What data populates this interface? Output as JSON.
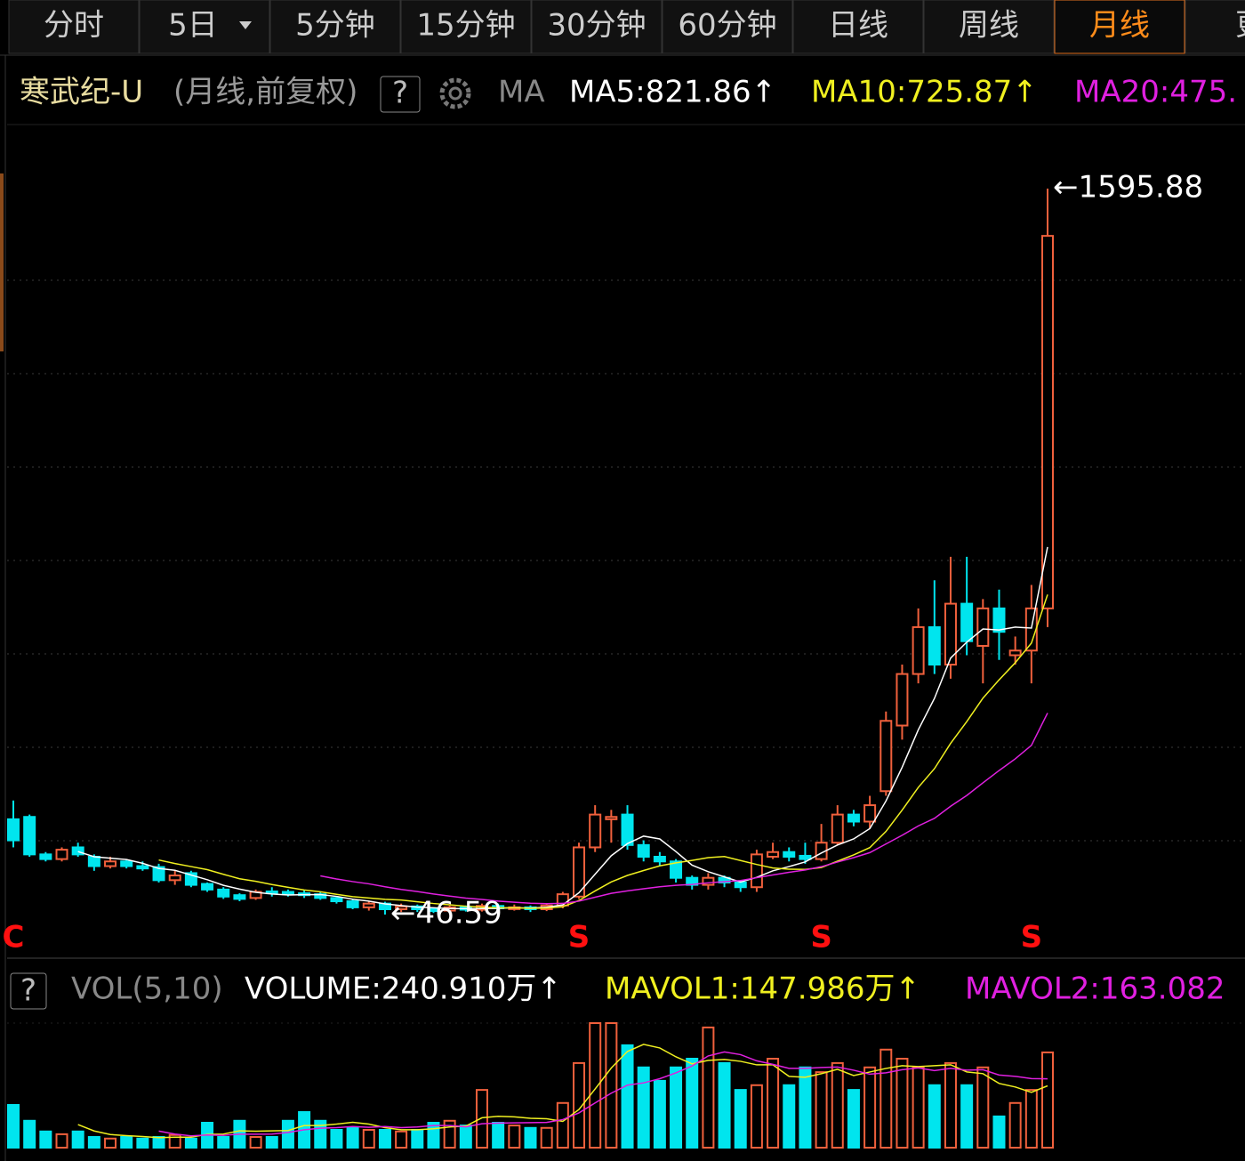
{
  "tabs": [
    "分时",
    "5日",
    "5分钟",
    "15分钟",
    "30分钟",
    "60分钟",
    "日线",
    "周线",
    "月线",
    "更"
  ],
  "selected_tab": "月线",
  "chart_data": [
    {
      "type": "candlestick",
      "title": "寒武纪-U",
      "subtitle": "(月线,前复权)",
      "help": "?",
      "indicator": "MA",
      "ma": [
        {
          "name": "MA5:821.86↑",
          "color": "#ffffff"
        },
        {
          "name": "MA10:725.87↑",
          "color": "#f0f020"
        },
        {
          "name": "MA20:475.",
          "color": "#e020e0"
        }
      ],
      "open": [
        250,
        255,
        175,
        165,
        190,
        170,
        150,
        160,
        150,
        148,
        120,
        135,
        112,
        100,
        88,
        82,
        96,
        95,
        92,
        90,
        82,
        75,
        62,
        70,
        58,
        64,
        58,
        55,
        62,
        57,
        65,
        60,
        62,
        58,
        66,
        85,
        190,
        250,
        260,
        195,
        170,
        160,
        125,
        110,
        125,
        115,
        105,
        170,
        180,
        172,
        165,
        200,
        260,
        245,
        310,
        450,
        560,
        660,
        580,
        710,
        620,
        700,
        600,
        610,
        700
      ],
      "high": [
        290,
        260,
        180,
        190,
        200,
        175,
        170,
        165,
        160,
        155,
        140,
        140,
        115,
        105,
        92,
        100,
        105,
        100,
        98,
        94,
        86,
        78,
        75,
        74,
        70,
        68,
        62,
        66,
        66,
        70,
        70,
        68,
        66,
        70,
        95,
        200,
        280,
        270,
        280,
        205,
        180,
        165,
        130,
        135,
        130,
        120,
        185,
        200,
        190,
        200,
        240,
        280,
        270,
        300,
        480,
        580,
        700,
        760,
        810,
        810,
        720,
        740,
        640,
        750,
        1595.88
      ],
      "low": [
        190,
        170,
        160,
        160,
        170,
        140,
        145,
        145,
        140,
        115,
        110,
        105,
        95,
        80,
        75,
        78,
        85,
        85,
        82,
        78,
        70,
        58,
        55,
        46.59,
        52,
        52,
        50,
        52,
        53,
        53,
        55,
        55,
        52,
        54,
        60,
        80,
        180,
        200,
        185,
        160,
        150,
        115,
        100,
        100,
        105,
        95,
        95,
        165,
        160,
        155,
        160,
        195,
        235,
        230,
        300,
        420,
        540,
        560,
        550,
        600,
        540,
        590,
        580,
        540,
        660
      ],
      "close": [
        205,
        175,
        165,
        185,
        175,
        150,
        160,
        150,
        145,
        120,
        130,
        110,
        100,
        85,
        80,
        95,
        92,
        90,
        88,
        82,
        75,
        62,
        70,
        58,
        64,
        58,
        55,
        62,
        57,
        65,
        60,
        62,
        58,
        66,
        90,
        190,
        260,
        255,
        195,
        170,
        160,
        125,
        110,
        125,
        115,
        105,
        175,
        180,
        170,
        165,
        200,
        260,
        245,
        280,
        460,
        560,
        660,
        580,
        710,
        630,
        700,
        650,
        610,
        700,
        1495
      ],
      "signals": [
        "C",
        null,
        null,
        null,
        null,
        null,
        null,
        null,
        null,
        null,
        null,
        null,
        null,
        null,
        null,
        null,
        null,
        null,
        null,
        null,
        null,
        null,
        null,
        null,
        null,
        null,
        null,
        null,
        null,
        null,
        null,
        null,
        null,
        null,
        null,
        "S",
        null,
        null,
        null,
        null,
        null,
        null,
        null,
        null,
        null,
        null,
        null,
        null,
        null,
        null,
        "S",
        null,
        null,
        null,
        null,
        null,
        null,
        null,
        null,
        null,
        null,
        null,
        null,
        "S",
        null
      ],
      "annotations": [
        {
          "text": "←1595.88"
        },
        {
          "text": "←46.59"
        }
      ]
    },
    {
      "type": "bar",
      "help": "?",
      "title": "VOL(5,10)",
      "series_labels": [
        {
          "name": "VOLUME:240.910万↑",
          "color": "#ffffff"
        },
        {
          "name": "MAVOL1:147.986万↑",
          "color": "#f0f020"
        },
        {
          "name": "MAVOL2:163.082",
          "color": "#e020e0"
        }
      ],
      "values": [
        108,
        68,
        41,
        34,
        41,
        27,
        23,
        27,
        23,
        27,
        32,
        23,
        63,
        27,
        68,
        27,
        27,
        68,
        90,
        68,
        45,
        50,
        45,
        45,
        41,
        45,
        63,
        68,
        56,
        146,
        63,
        56,
        50,
        50,
        113,
        214,
        315,
        315,
        259,
        203,
        169,
        203,
        225,
        304,
        214,
        146,
        158,
        225,
        158,
        203,
        191,
        214,
        146,
        203,
        248,
        225,
        203,
        158,
        214,
        158,
        203,
        79,
        113,
        146,
        240.91
      ]
    }
  ]
}
